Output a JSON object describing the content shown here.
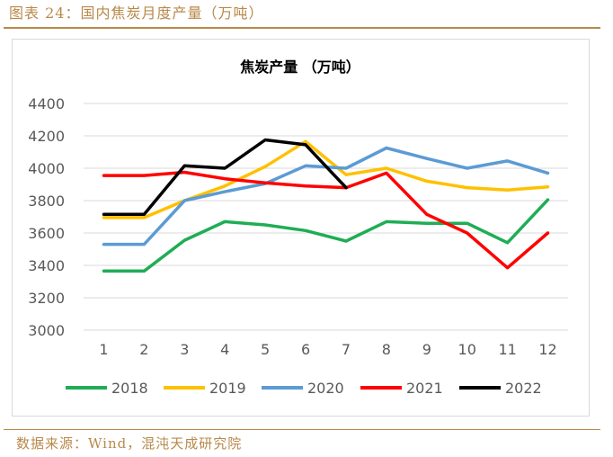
{
  "figure": {
    "caption": "图表 24：国内焦炭月度产量（万吨）",
    "source": "数据来源：Wind，混沌天成研究院"
  },
  "chart_data": {
    "type": "line",
    "title": "焦炭产量 （万吨）",
    "xlabel": "",
    "ylabel": "",
    "x": [
      1,
      2,
      3,
      4,
      5,
      6,
      7,
      8,
      9,
      10,
      11,
      12
    ],
    "ylim": [
      3000,
      4400
    ],
    "yticks": [
      3000,
      3200,
      3400,
      3600,
      3800,
      4000,
      4200,
      4400
    ],
    "grid": true,
    "legend_position": "bottom",
    "series": [
      {
        "name": "2018",
        "color": "#1fad55",
        "values": [
          3365,
          3365,
          3555,
          3670,
          3650,
          3615,
          3550,
          3670,
          3660,
          3660,
          3540,
          3805
        ]
      },
      {
        "name": "2019",
        "color": "#ffc000",
        "values": [
          3695,
          3695,
          3800,
          3890,
          4010,
          4165,
          3960,
          4000,
          3920,
          3880,
          3865,
          3885
        ]
      },
      {
        "name": "2020",
        "color": "#5b9bd5",
        "values": [
          3530,
          3530,
          3800,
          3855,
          3905,
          4015,
          4000,
          4125,
          4060,
          4000,
          4045,
          3970
        ]
      },
      {
        "name": "2021",
        "color": "#ff0000",
        "values": [
          3955,
          3955,
          3975,
          3935,
          3910,
          3890,
          3880,
          3970,
          3715,
          3600,
          3385,
          3600
        ]
      },
      {
        "name": "2022",
        "color": "#000000",
        "values": [
          3715,
          3715,
          4015,
          4000,
          4175,
          4145,
          3880,
          null,
          null,
          null,
          null,
          null
        ]
      }
    ]
  }
}
